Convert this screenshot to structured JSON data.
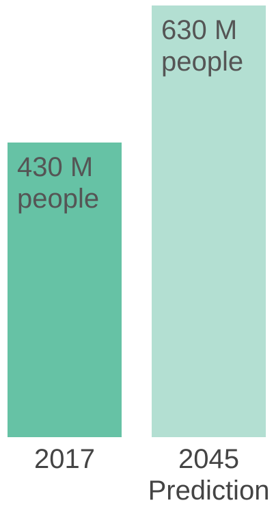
{
  "chart_data": {
    "type": "bar",
    "title": "",
    "xlabel": "",
    "ylabel": "",
    "ylim": [
      0,
      630
    ],
    "grid": false,
    "legend": "none",
    "bars": [
      {
        "category_lines": [
          "2017"
        ],
        "value": 430,
        "label_lines": [
          "430 M",
          "people"
        ],
        "color": "#66c2a5"
      },
      {
        "category_lines": [
          "2045",
          "Prediction"
        ],
        "value": 630,
        "label_lines": [
          "630 M",
          "people"
        ],
        "color": "#b3dfd2"
      }
    ]
  }
}
